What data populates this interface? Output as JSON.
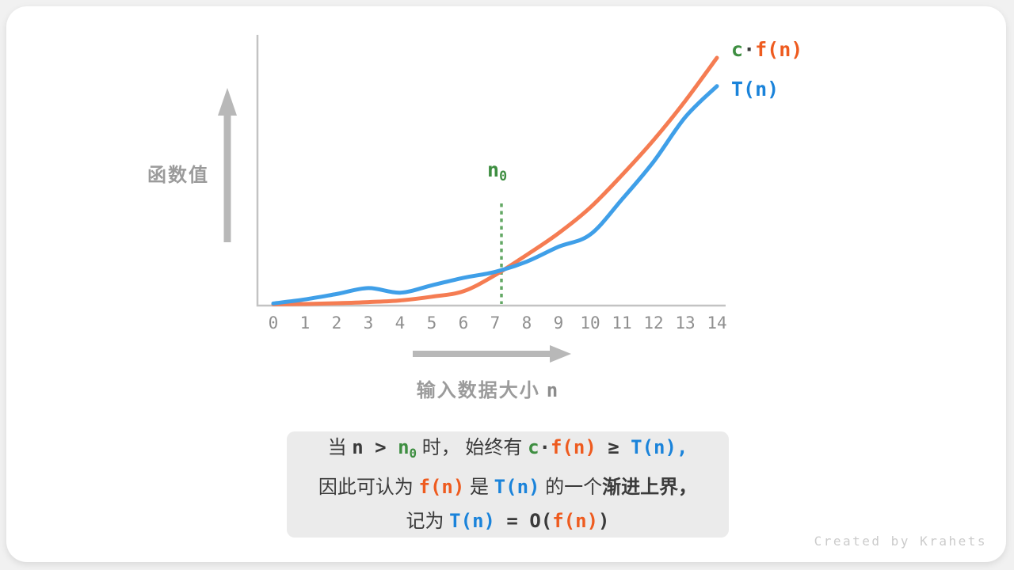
{
  "watermark": "Created by Krahets",
  "colors": {
    "curve_orange": "#f57c52",
    "curve_blue": "#3f9fe8",
    "text_orange": "#ee5b1f",
    "text_blue": "#1a83da",
    "text_green": "#3e8e41",
    "dotted_green": "#63a865",
    "axis_gray": "#c3c3c3",
    "arrow_gray": "#b8b8b8",
    "caption_bg": "#ebebeb"
  },
  "chart": {
    "y_axis_label": "函数值",
    "x_axis_label_cn": "输入数据大小",
    "x_axis_label_var": "n",
    "threshold_label": [
      {
        "t": "n",
        "s": "var-green"
      },
      {
        "t": "0",
        "s": "var-green sub"
      }
    ],
    "legend_cfn": [
      {
        "t": "c",
        "s": "var-green"
      },
      {
        "t": "·",
        "s": "op"
      },
      {
        "t": "f(n)",
        "s": "var-orange"
      }
    ],
    "legend_tn": [
      {
        "t": "T(n)",
        "s": "var-blue"
      }
    ]
  },
  "caption": {
    "lines": [
      [
        {
          "t": "当 ",
          "s": "cn"
        },
        {
          "t": "n",
          "s": "op"
        },
        {
          "t": " > ",
          "s": "op"
        },
        {
          "t": "n",
          "s": "var-green"
        },
        {
          "t": "0",
          "s": "var-green sub"
        },
        {
          "t": " 时， 始终有 ",
          "s": "cn"
        },
        {
          "t": "c",
          "s": "var-green"
        },
        {
          "t": "·",
          "s": "op"
        },
        {
          "t": "f(n)",
          "s": "var-orange"
        },
        {
          "t": " ≥ ",
          "s": "op"
        },
        {
          "t": "T(n),",
          "s": "var-blue"
        }
      ],
      [
        {
          "t": "因此可认为 ",
          "s": "cn"
        },
        {
          "t": "f(n)",
          "s": "var-orange"
        },
        {
          "t": " 是 ",
          "s": "cn"
        },
        {
          "t": "T(n)",
          "s": "var-blue"
        },
        {
          "t": " 的一个",
          "s": "cn"
        },
        {
          "t": "渐进上界，",
          "s": "cn bold"
        }
      ],
      [
        {
          "t": "记为 ",
          "s": "cn"
        },
        {
          "t": "T(n)",
          "s": "var-blue"
        },
        {
          "t": " = ",
          "s": "op"
        },
        {
          "t": "O(",
          "s": "op"
        },
        {
          "t": "f(n)",
          "s": "var-orange"
        },
        {
          "t": ")",
          "s": "op"
        }
      ]
    ]
  },
  "chart_data": {
    "type": "line",
    "title": "",
    "xlabel": "输入数据大小 n",
    "ylabel": "函数值",
    "x_tick_labels": [
      "0",
      "1",
      "2",
      "3",
      "4",
      "5",
      "6",
      "7",
      "8",
      "9",
      "10",
      "11",
      "12",
      "13",
      "14"
    ],
    "xlim": [
      0,
      14.3
    ],
    "ylim": [
      0,
      10
    ],
    "grid": false,
    "legend_position": "top-right",
    "series": [
      {
        "name": "c·f(n)",
        "color": "#f57c52",
        "points": [
          [
            0,
            0.02
          ],
          [
            1,
            0.03
          ],
          [
            2,
            0.06
          ],
          [
            3,
            0.1
          ],
          [
            4,
            0.16
          ],
          [
            5,
            0.3
          ],
          [
            6,
            0.5
          ],
          [
            7,
            1.1
          ],
          [
            8,
            1.85
          ],
          [
            9,
            2.65
          ],
          [
            10,
            3.6
          ],
          [
            11,
            4.8
          ],
          [
            12,
            6.1
          ],
          [
            13,
            7.55
          ],
          [
            14,
            9.15
          ]
        ]
      },
      {
        "name": "T(n)",
        "color": "#3f9fe8",
        "points": [
          [
            0,
            0.05
          ],
          [
            1,
            0.2
          ],
          [
            2,
            0.4
          ],
          [
            3,
            0.62
          ],
          [
            4,
            0.45
          ],
          [
            5,
            0.72
          ],
          [
            6,
            1.0
          ],
          [
            7,
            1.22
          ],
          [
            8,
            1.6
          ],
          [
            9,
            2.15
          ],
          [
            10,
            2.6
          ],
          [
            11,
            3.9
          ],
          [
            12,
            5.3
          ],
          [
            13,
            6.95
          ],
          [
            14,
            8.1
          ]
        ]
      }
    ],
    "annotations": [
      {
        "type": "vline-dotted",
        "x": 7.2,
        "label": "n0",
        "color": "#3e8e41"
      }
    ]
  }
}
